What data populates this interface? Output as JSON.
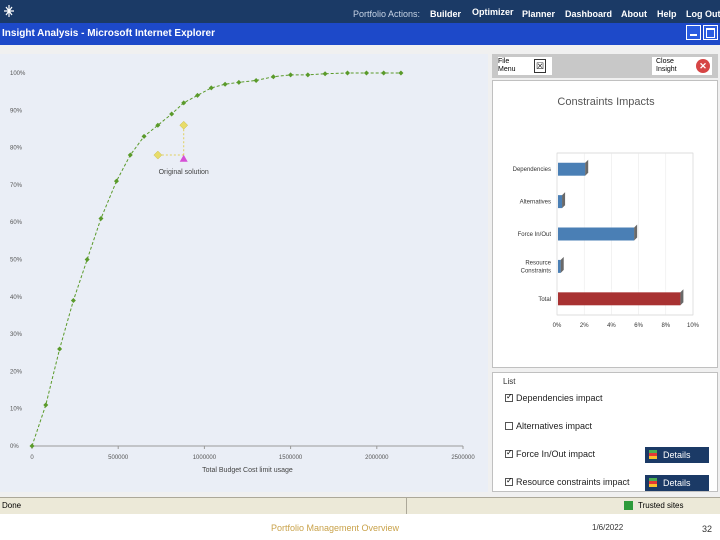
{
  "app": {
    "nav_portfolio": "Portfolio Actions:",
    "nav_items": [
      "Builder",
      "Optimizer",
      "Planner",
      "Dashboard",
      "About",
      "Help",
      "Log Out"
    ],
    "window_title": "Insight Analysis - Microsoft Internet Explorer",
    "brand_color": "#1b3a66",
    "titlebar_color": "#1d49c9"
  },
  "left_chart": {
    "y_ticks": [
      "100%",
      "90%",
      "80%",
      "70%",
      "60%",
      "50%",
      "40%",
      "30%",
      "20%",
      "10%",
      "0%"
    ],
    "x_ticks": [
      "0",
      "500000",
      "1000000",
      "1500000",
      "2000000",
      "2500000"
    ],
    "x_label": "Total Budget Cost   limit usage",
    "annotation": "Original solution",
    "line_color": "#5a9a2a"
  },
  "chart_data": {
    "type": "line",
    "title": "",
    "xlabel": "Total Budget Cost   limit usage",
    "ylabel": "",
    "xlim": [
      0,
      2500000
    ],
    "ylim": [
      0,
      100
    ],
    "x": [
      0,
      80000,
      160000,
      240000,
      320000,
      400000,
      490000,
      570000,
      650000,
      730000,
      810000,
      880000,
      960000,
      1040000,
      1120000,
      1200000,
      1300000,
      1400000,
      1500000,
      1600000,
      1700000,
      1830000,
      1940000,
      2040000,
      2140000
    ],
    "series": [
      {
        "name": "",
        "values": [
          0,
          11,
          26,
          39,
          50,
          61,
          71,
          78,
          83,
          86,
          89,
          92,
          94,
          96,
          97,
          97.5,
          98,
          99,
          99.5,
          99.5,
          99.8,
          100,
          100,
          100,
          100
        ]
      }
    ],
    "highlight_points": [
      {
        "x": 730000,
        "y": 78
      },
      {
        "x": 880000,
        "y": 86
      }
    ],
    "original_solution": {
      "x": 880000,
      "y": 77
    },
    "grid": false
  },
  "right_panel": {
    "file_menu": "File Menu",
    "close_insight": "Close Insight",
    "constraints_title": "Constraints Impacts",
    "constraints_chart": {
      "type": "bar",
      "categories": [
        "Dependencies",
        "Alternatives",
        "Force In/Out",
        "Resource Constraints",
        "Total"
      ],
      "values": [
        2.0,
        0.3,
        5.6,
        0.2,
        9.0
      ],
      "x_ticks": [
        "0%",
        "2%",
        "4%",
        "6%",
        "8%",
        "10%"
      ],
      "xlim": [
        0,
        10
      ],
      "colors": [
        "#4a7fb5",
        "#4a7fb5",
        "#4a7fb5",
        "#4a7fb5",
        "#a83232"
      ]
    },
    "options_heading": "List",
    "options": [
      {
        "label": "Dependencies impact",
        "checked": true,
        "has_details": false
      },
      {
        "label": "Alternatives impact",
        "checked": false,
        "has_details": false
      },
      {
        "label": "Force In/Out impact",
        "checked": true,
        "has_details": true
      },
      {
        "label": "Resource constraints impact",
        "checked": true,
        "has_details": true
      }
    ],
    "details_label": "Details"
  },
  "statusbar": {
    "done": "Done",
    "trusted": "Trusted sites"
  },
  "footer": {
    "title": "Portfolio Management Overview",
    "date": "1/6/2022",
    "page": "32"
  }
}
